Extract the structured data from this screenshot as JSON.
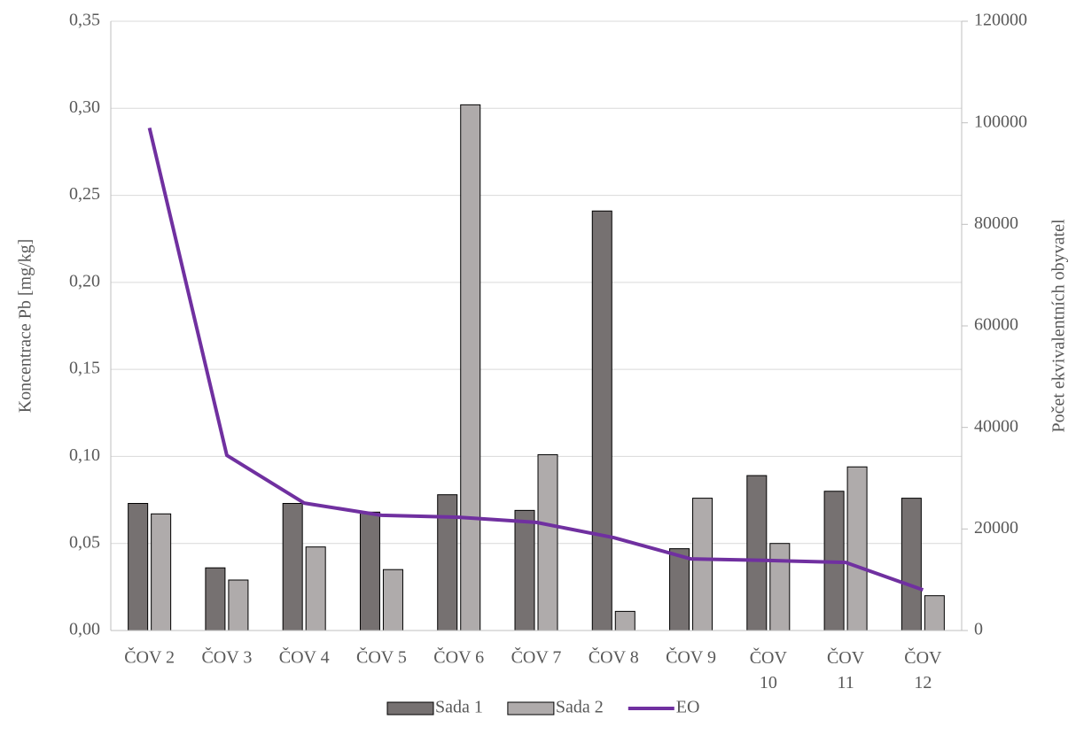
{
  "chart_data": {
    "type": "bar_line",
    "y_label": "Koncentrace Pb [mg/kg]",
    "y2_label": "Počet ekvivalentních obyvatel",
    "categories": [
      "ČOV 2",
      "ČOV 3",
      "ČOV 4",
      "ČOV 5",
      "ČOV 6",
      "ČOV 7",
      "ČOV 8",
      "ČOV 9",
      "ČOV 10",
      "ČOV 11",
      "ČOV 12"
    ],
    "series": [
      {
        "name": "Sada 1",
        "type": "bar",
        "color": "#767171",
        "values": [
          0.073,
          0.036,
          0.073,
          0.068,
          0.078,
          0.069,
          0.241,
          0.047,
          0.089,
          0.08,
          0.076
        ]
      },
      {
        "name": "Sada 2",
        "type": "bar",
        "color": "#afabab",
        "values": [
          0.067,
          0.029,
          0.048,
          0.035,
          0.302,
          0.101,
          0.011,
          0.076,
          0.05,
          0.094,
          0.02
        ]
      },
      {
        "name": "EO",
        "type": "line",
        "axis": "y2",
        "color": "#7030a0",
        "values": [
          99000,
          34500,
          25100,
          22700,
          22300,
          21300,
          18300,
          14100,
          13800,
          13400,
          8000
        ]
      }
    ],
    "ylim": [
      0,
      0.35
    ],
    "yticks": [
      {
        "value": 0,
        "label": "0,00"
      },
      {
        "value": 0.05,
        "label": "0,05"
      },
      {
        "value": 0.1,
        "label": "0,10"
      },
      {
        "value": 0.15,
        "label": "0,15"
      },
      {
        "value": 0.2,
        "label": "0,20"
      },
      {
        "value": 0.25,
        "label": "0,25"
      },
      {
        "value": 0.3,
        "label": "0,30"
      },
      {
        "value": 0.35,
        "label": "0,35"
      }
    ],
    "y2lim": [
      0,
      120000
    ],
    "y2ticks": [
      0,
      20000,
      40000,
      60000,
      80000,
      100000,
      120000
    ],
    "grid": true,
    "legend": "bottom"
  }
}
